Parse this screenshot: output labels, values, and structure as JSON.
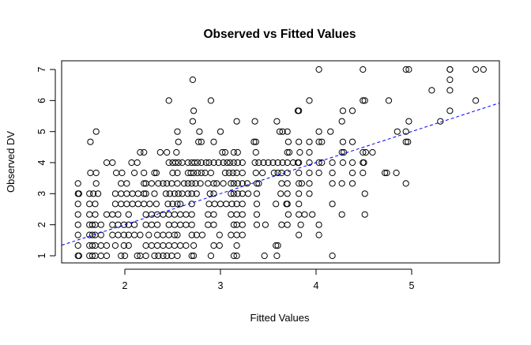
{
  "chart_data": {
    "type": "scatter",
    "title": "Observed vs Fitted Values",
    "xlabel": "Fitted Values",
    "ylabel": "Observed DV",
    "xlim": [
      1.34,
      5.92
    ],
    "ylim": [
      0.85,
      7.15
    ],
    "xticks": [
      "2",
      "3",
      "4",
      "5"
    ],
    "yticks": [
      "1",
      "2",
      "3",
      "4",
      "5",
      "6",
      "7"
    ],
    "grid": false,
    "point_color": "#000000",
    "reference_line": {
      "type": "abline",
      "intercept": 0,
      "slope": 1,
      "style": "dashed",
      "color": "#0000FF"
    },
    "rows": [
      {
        "y": 7,
        "x": [
          4.03,
          4.49,
          4.94,
          4.97,
          5.4,
          5.4,
          5.67,
          5.75
        ]
      },
      {
        "y": 6.67,
        "x": [
          2.71,
          5.4
        ]
      },
      {
        "y": 6.33,
        "x": [
          5.21,
          5.4
        ]
      },
      {
        "y": 6,
        "x": [
          2.46,
          2.9,
          3.93,
          4.49,
          4.51,
          4.76,
          5.67
        ]
      },
      {
        "y": 5.67,
        "x": [
          2.72,
          3.81,
          3.82,
          4.28,
          4.38,
          5.4
        ]
      },
      {
        "y": 5.33,
        "x": [
          2.71,
          3.17,
          3.36,
          3.59,
          4.27,
          4.97,
          5.3
        ]
      },
      {
        "y": 5,
        "x": [
          1.7,
          2.55,
          2.78,
          3.0,
          3.62,
          3.65,
          3.7,
          4.03,
          4.15,
          4.85,
          4.94
        ]
      },
      {
        "y": 4.67,
        "x": [
          1.64,
          2.56,
          2.77,
          2.8,
          2.93,
          3.35,
          3.37,
          3.71,
          3.82,
          3.93,
          4.03,
          4.06,
          4.28,
          4.38,
          4.94,
          4.96
        ]
      },
      {
        "y": 4.33,
        "x": [
          2.16,
          2.2,
          2.37,
          2.44,
          2.54,
          3.02,
          3.05,
          3.14,
          3.18,
          3.37,
          3.7,
          3.72,
          3.83,
          3.93,
          4.27,
          4.29,
          4.49,
          4.52,
          4.59
        ]
      },
      {
        "y": 4,
        "x": [
          1.81,
          1.87,
          2.07,
          2.13,
          2.46,
          2.5,
          2.53,
          2.56,
          2.6,
          2.66,
          2.7,
          2.73,
          2.76,
          2.8,
          2.85,
          2.88,
          2.93,
          2.98,
          3.03,
          3.07,
          3.1,
          3.14,
          3.18,
          3.23,
          3.36,
          3.4,
          3.45,
          3.5,
          3.55,
          3.6,
          3.65,
          3.7,
          3.76,
          3.81,
          3.82,
          3.93,
          4.03,
          4.06,
          4.17,
          4.28,
          4.38,
          4.49,
          4.5
        ]
      },
      {
        "y": 3.67,
        "x": [
          1.64,
          1.7,
          1.91,
          1.97,
          2.1,
          2.2,
          2.31,
          2.33,
          2.5,
          2.55,
          2.66,
          2.69,
          2.72,
          2.76,
          2.8,
          2.84,
          2.9,
          3.05,
          3.09,
          3.13,
          3.17,
          3.23,
          3.37,
          3.44,
          3.56,
          3.6,
          3.64,
          3.7,
          3.82,
          3.93,
          4.03,
          4.17,
          4.38,
          4.49,
          4.72,
          4.74,
          4.84
        ]
      },
      {
        "y": 3.33,
        "x": [
          1.51,
          1.7,
          1.96,
          2.02,
          2.2,
          2.22,
          2.28,
          2.35,
          2.4,
          2.44,
          2.49,
          2.55,
          2.62,
          2.66,
          2.7,
          2.74,
          2.79,
          2.87,
          2.93,
          2.96,
          3.03,
          3.11,
          3.14,
          3.18,
          3.23,
          3.28,
          3.38,
          3.4,
          3.64,
          3.7,
          3.82,
          3.85,
          3.93,
          4.17,
          4.27,
          4.38,
          4.94
        ]
      },
      {
        "y": 3,
        "x": [
          1.51,
          1.52,
          1.63,
          1.67,
          1.72,
          1.9,
          1.96,
          2.02,
          2.08,
          2.14,
          2.2,
          2.22,
          2.31,
          2.43,
          2.47,
          2.52,
          2.56,
          2.6,
          2.66,
          2.7,
          2.75,
          2.89,
          2.93,
          3.11,
          3.14,
          3.18,
          3.23,
          3.29,
          3.38,
          3.63,
          3.7,
          3.82,
          3.93,
          4.51
        ]
      },
      {
        "y": 2.67,
        "x": [
          1.51,
          1.63,
          1.69,
          1.9,
          1.96,
          2.02,
          2.08,
          2.14,
          2.2,
          2.26,
          2.33,
          2.45,
          2.5,
          2.55,
          2.58,
          2.7,
          2.88,
          2.94,
          3.0,
          3.06,
          3.12,
          3.17,
          3.23,
          3.38,
          3.58,
          3.69,
          3.7,
          3.82,
          4.17
        ]
      },
      {
        "y": 2.33,
        "x": [
          1.51,
          1.63,
          1.69,
          1.81,
          1.87,
          1.93,
          2.04,
          2.22,
          2.28,
          2.34,
          2.4,
          2.46,
          2.52,
          2.58,
          2.64,
          2.7,
          2.87,
          2.93,
          3.11,
          3.17,
          3.23,
          3.38,
          3.71,
          3.82,
          3.88,
          3.96,
          4.27,
          4.51
        ]
      },
      {
        "y": 2,
        "x": [
          1.51,
          1.63,
          1.66,
          1.69,
          1.75,
          1.87,
          1.93,
          1.99,
          2.04,
          2.1,
          2.22,
          2.28,
          2.34,
          2.46,
          2.52,
          2.58,
          2.64,
          2.7,
          2.87,
          2.93,
          3.14,
          3.17,
          3.23,
          3.38,
          3.47,
          3.64,
          3.7,
          3.84,
          4.03
        ]
      },
      {
        "y": 1.67,
        "x": [
          1.51,
          1.63,
          1.66,
          1.69,
          1.75,
          1.87,
          1.93,
          1.99,
          2.04,
          2.1,
          2.16,
          2.25,
          2.34,
          2.4,
          2.46,
          2.52,
          2.55,
          2.7,
          2.75,
          2.81,
          2.99,
          3.11,
          3.17,
          3.23,
          3.82,
          4.03
        ]
      },
      {
        "y": 1.33,
        "x": [
          1.51,
          1.63,
          1.66,
          1.69,
          1.75,
          1.81,
          1.9,
          1.99,
          2.04,
          2.22,
          2.28,
          2.34,
          2.4,
          2.46,
          2.52,
          2.58,
          2.64,
          2.72,
          2.93,
          2.99,
          3.17,
          3.58,
          3.6
        ]
      },
      {
        "y": 1,
        "x": [
          1.51,
          1.52,
          1.63,
          1.66,
          1.69,
          1.75,
          1.81,
          1.96,
          2.0,
          2.13,
          2.16,
          2.22,
          2.31,
          2.35,
          2.4,
          2.44,
          2.49,
          2.55,
          2.7,
          2.72,
          2.9,
          3.14,
          3.17,
          3.46,
          3.59,
          4.17
        ]
      }
    ]
  }
}
